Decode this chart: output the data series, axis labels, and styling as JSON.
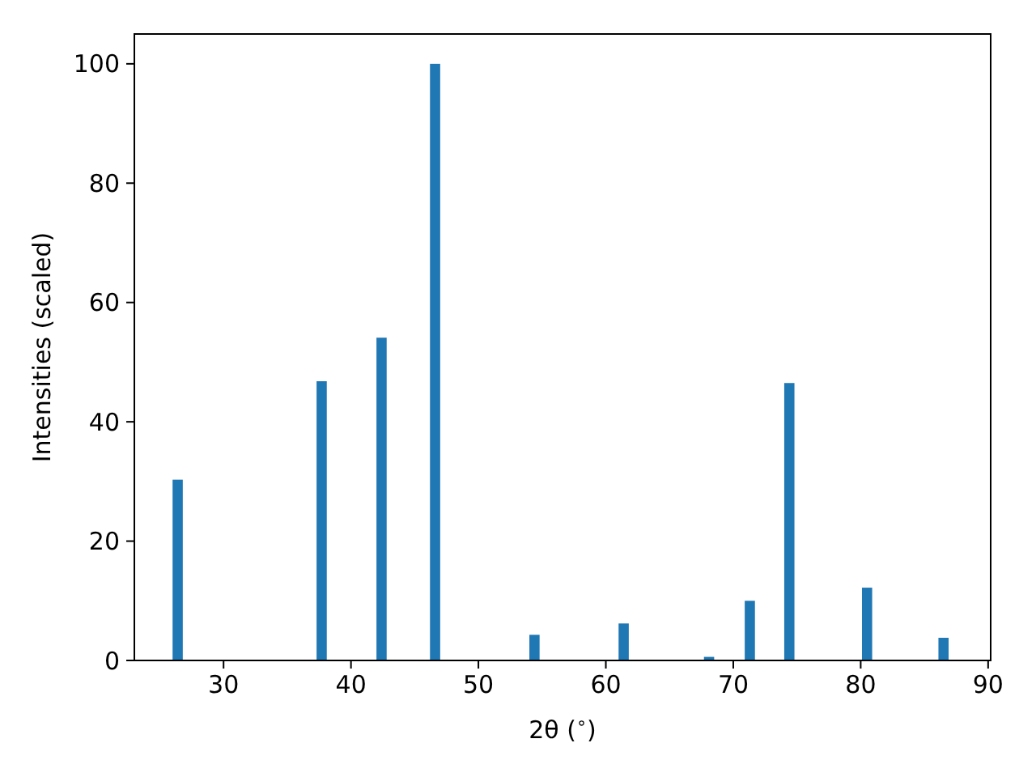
{
  "chart_data": {
    "type": "bar",
    "xlabel": "2θ ($^{∘}$)",
    "ylabel": "Intensities (scaled)",
    "x": [
      26.4,
      37.7,
      42.4,
      46.6,
      54.4,
      61.4,
      68.1,
      71.3,
      74.4,
      80.5,
      86.5
    ],
    "values": [
      30.3,
      46.8,
      54.1,
      100,
      4.3,
      6.2,
      0.6,
      10,
      46.5,
      12.2,
      3.8
    ],
    "color": "#1f77b4",
    "xlim": [
      23,
      90.2
    ],
    "xticks": [
      30,
      40,
      50,
      60,
      70,
      80,
      90
    ],
    "ylim": [
      0,
      105
    ],
    "yticks": [
      0,
      20,
      40,
      60,
      80,
      100
    ]
  }
}
